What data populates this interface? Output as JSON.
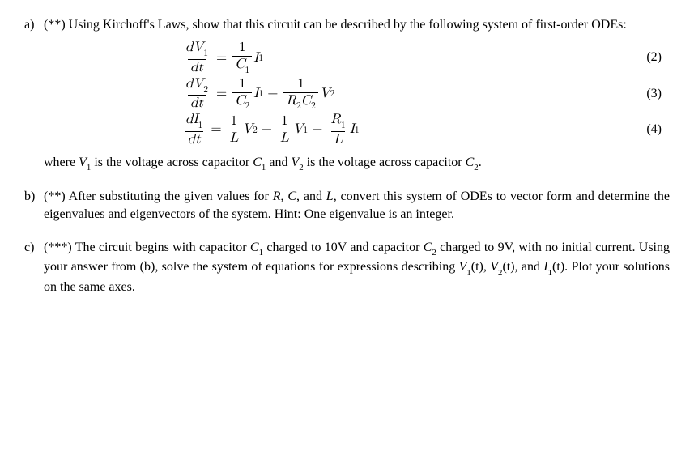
{
  "items": {
    "a": {
      "label": "a)",
      "stars": "(**)",
      "intro": "Using Kirchoff's Laws, show that this circuit can be described by the following system of first-order ODEs:",
      "equations": [
        {
          "lhs_num": "dV",
          "lhs_num_sub": "1",
          "lhs_den": "dt",
          "terms": [
            {
              "sign": "",
              "coef_num": "1",
              "coef_den_a": "C",
              "coef_den_a_sub": "1",
              "tail": "I",
              "tail_sub": "1"
            }
          ],
          "num": "(2)"
        },
        {
          "lhs_num": "dV",
          "lhs_num_sub": "2",
          "lhs_den": "dt",
          "terms": [
            {
              "sign": "",
              "coef_num": "1",
              "coef_den_a": "C",
              "coef_den_a_sub": "2",
              "tail": "I",
              "tail_sub": "1"
            },
            {
              "sign": "−",
              "coef_num": "1",
              "coef_den_a": "R",
              "coef_den_a_sub": "2",
              "coef_den_b": "C",
              "coef_den_b_sub": "2",
              "tail": "V",
              "tail_sub": "2"
            }
          ],
          "num": "(3)"
        },
        {
          "lhs_num": "dI",
          "lhs_num_sub": "1",
          "lhs_den": "dt",
          "terms": [
            {
              "sign": "",
              "coef_num": "1",
              "coef_den_a": "L",
              "tail": "V",
              "tail_sub": "2"
            },
            {
              "sign": "−",
              "coef_num": "1",
              "coef_den_a": "L",
              "tail": "V",
              "tail_sub": "1"
            },
            {
              "sign": "−",
              "coef_num_a": "R",
              "coef_num_a_sub": "1",
              "coef_den_a": "L",
              "tail": "I",
              "tail_sub": "1"
            }
          ],
          "num": "(4)"
        }
      ],
      "trailing_parts": {
        "p1": "where ",
        "v1": "V",
        "v1sub": "1",
        "p2": " is the voltage across capacitor ",
        "c1": "C",
        "c1sub": "1",
        "p3": " and ",
        "v2": "V",
        "v2sub": "2",
        "p4": " is the voltage across capacitor ",
        "c2": "C",
        "c2sub": "2",
        "p5": "."
      }
    },
    "b": {
      "label": "b)",
      "stars": "(**)",
      "parts": {
        "p1": "After substituting the given values for ",
        "r": "R",
        "p2": ", ",
        "c": "C",
        "p3": ", and ",
        "l": "L",
        "p4": ", convert this system of ODEs to vector form and determine the eigenvalues and eigenvectors of the system. Hint: One eigenvalue is an integer."
      }
    },
    "c": {
      "label": "c)",
      "stars": "(***)",
      "parts": {
        "p1": "The circuit begins with capacitor ",
        "c1": "C",
        "c1sub": "1",
        "p2": " charged to 10V and capacitor ",
        "c2": "C",
        "c2sub": "2",
        "p3": " charged to 9V, with no initial current. Using your answer from (b), solve the system of equations for expressions describing ",
        "v1": "V",
        "v1sub": "1",
        "v1arg": "(t)",
        "p4": ", ",
        "v2": "V",
        "v2sub": "2",
        "v2arg": "(t)",
        "p5": ", and ",
        "i1": "I",
        "i1sub": "1",
        "i1arg": "(t)",
        "p6": ". Plot your solutions on the same axes."
      }
    }
  }
}
